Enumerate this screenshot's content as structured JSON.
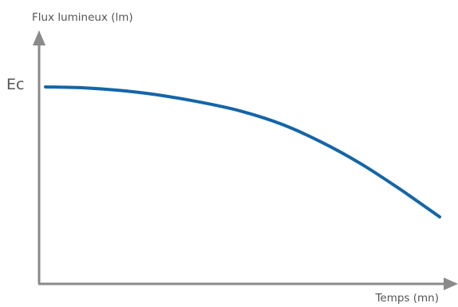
{
  "chart_data": {
    "type": "line",
    "xlabel": "Temps (mn)",
    "ylabel": "Flux lumineux (lm)",
    "y_tick_labels": [
      "Ec"
    ],
    "grid": false,
    "series": [
      {
        "x": [
          0,
          0.1,
          0.2,
          0.3,
          0.4,
          0.5,
          0.6,
          0.7,
          0.8,
          0.9,
          1.0
        ],
        "y": [
          1.0,
          0.995,
          0.98,
          0.955,
          0.92,
          0.875,
          0.81,
          0.72,
          0.61,
          0.48,
          0.34
        ]
      }
    ],
    "colors": {
      "axis": "#8a8a8a",
      "line": "#1565a8",
      "text": "#555555"
    }
  }
}
